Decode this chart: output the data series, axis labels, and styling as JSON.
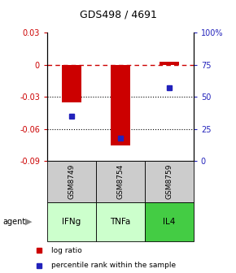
{
  "title": "GDS498 / 4691",
  "samples": [
    "GSM8749",
    "GSM8754",
    "GSM8759"
  ],
  "agents": [
    "IFNg",
    "TNFa",
    "IL4"
  ],
  "log_ratios": [
    -0.035,
    -0.075,
    0.003
  ],
  "percentile_ranks": [
    35,
    18,
    57
  ],
  "ylim_left": [
    -0.09,
    0.03
  ],
  "ylim_right": [
    0,
    100
  ],
  "yticks_left": [
    0.03,
    0,
    -0.03,
    -0.06,
    -0.09
  ],
  "yticks_right": [
    100,
    75,
    50,
    25,
    0
  ],
  "bar_color": "#cc0000",
  "dot_color": "#2222bb",
  "sample_bg": "#cccccc",
  "agent_colors": [
    "#ccffcc",
    "#ccffcc",
    "#44cc44"
  ],
  "legend_dot_size": 4,
  "bar_width": 0.4,
  "x_positions": [
    0,
    1,
    2
  ],
  "xlim": [
    -0.5,
    2.5
  ]
}
